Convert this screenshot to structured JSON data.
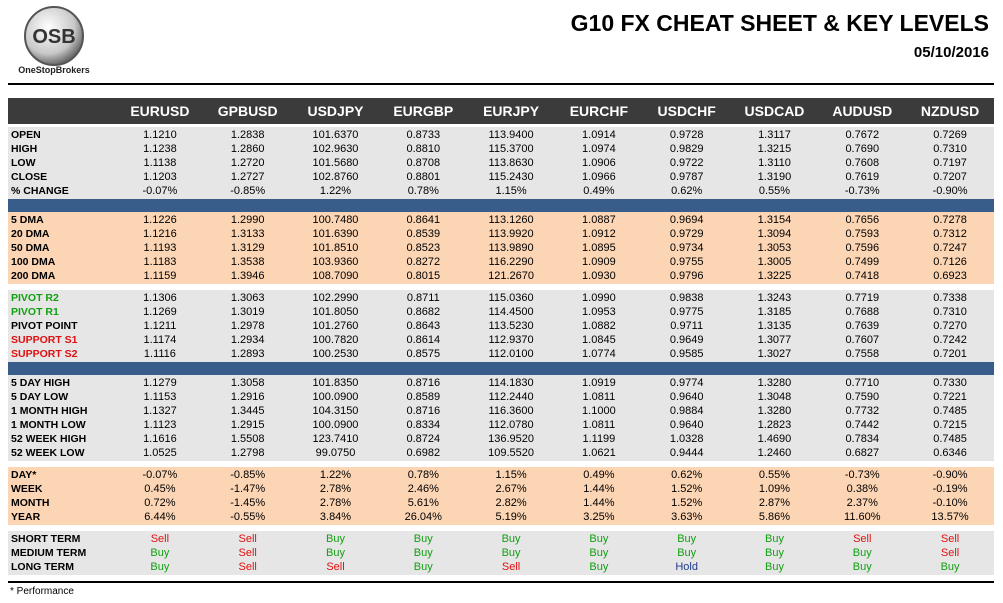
{
  "header": {
    "logo_text": "OSB",
    "brand": "OneStopBrokers",
    "title": "G10 FX CHEAT SHEET & KEY LEVELS",
    "date": "05/10/2016"
  },
  "table": {
    "columns": [
      "EURUSD",
      "GPBUSD",
      "USDJPY",
      "EURGBP",
      "EURJPY",
      "EURCHF",
      "USDCHF",
      "USDCAD",
      "AUDUSD",
      "NZDUSD"
    ],
    "cell_colors": {
      "Buy": "#12a012",
      "Sell": "#e01010",
      "Hold": "#1f3b8c"
    },
    "sections": [
      {
        "fill": "#e6e6e6",
        "rows": [
          {
            "label": "OPEN",
            "cells": [
              "1.1210",
              "1.2838",
              "101.6370",
              "0.8733",
              "113.9400",
              "1.0914",
              "0.9728",
              "1.3117",
              "0.7672",
              "0.7269"
            ]
          },
          {
            "label": "HIGH",
            "cells": [
              "1.1238",
              "1.2860",
              "102.9630",
              "0.8810",
              "115.3700",
              "1.0974",
              "0.9829",
              "1.3215",
              "0.7690",
              "0.7310"
            ]
          },
          {
            "label": "LOW",
            "cells": [
              "1.1138",
              "1.2720",
              "101.5680",
              "0.8708",
              "113.8630",
              "1.0906",
              "0.9722",
              "1.3110",
              "0.7608",
              "0.7197"
            ]
          },
          {
            "label": "CLOSE",
            "cells": [
              "1.1203",
              "1.2727",
              "102.8760",
              "0.8801",
              "115.2430",
              "1.0966",
              "0.9787",
              "1.3190",
              "0.7619",
              "0.7207"
            ]
          },
          {
            "label": "% CHANGE",
            "cells": [
              "-0.07%",
              "-0.85%",
              "1.22%",
              "0.78%",
              "1.15%",
              "0.49%",
              "0.62%",
              "0.55%",
              "-0.73%",
              "-0.90%"
            ]
          }
        ]
      },
      {
        "fill": "#fcd5b4",
        "divider": "#385d8a",
        "rows": [
          {
            "label": "5 DMA",
            "cells": [
              "1.1226",
              "1.2990",
              "100.7480",
              "0.8641",
              "113.1260",
              "1.0887",
              "0.9694",
              "1.3154",
              "0.7656",
              "0.7278"
            ]
          },
          {
            "label": "20 DMA",
            "cells": [
              "1.1216",
              "1.3133",
              "101.6390",
              "0.8539",
              "113.9920",
              "1.0912",
              "0.9729",
              "1.3094",
              "0.7593",
              "0.7312"
            ]
          },
          {
            "label": "50 DMA",
            "cells": [
              "1.1193",
              "1.3129",
              "101.8510",
              "0.8523",
              "113.9890",
              "1.0895",
              "0.9734",
              "1.3053",
              "0.7596",
              "0.7247"
            ]
          },
          {
            "label": "100 DMA",
            "cells": [
              "1.1183",
              "1.3538",
              "103.9360",
              "0.8272",
              "116.2290",
              "1.0909",
              "0.9755",
              "1.3005",
              "0.7499",
              "0.7126"
            ]
          },
          {
            "label": "200 DMA",
            "cells": [
              "1.1159",
              "1.3946",
              "108.7090",
              "0.8015",
              "121.2670",
              "1.0930",
              "0.9796",
              "1.3225",
              "0.7418",
              "0.6923"
            ]
          }
        ]
      },
      {
        "fill": "#e6e6e6",
        "rows": [
          {
            "label": "PIVOT R2",
            "label_color": "#12a012",
            "cells": [
              "1.1306",
              "1.3063",
              "102.2990",
              "0.8711",
              "115.0360",
              "1.0990",
              "0.9838",
              "1.3243",
              "0.7719",
              "0.7338"
            ]
          },
          {
            "label": "PIVOT R1",
            "label_color": "#12a012",
            "cells": [
              "1.1269",
              "1.3019",
              "101.8050",
              "0.8682",
              "114.4500",
              "1.0953",
              "0.9775",
              "1.3185",
              "0.7688",
              "0.7310"
            ]
          },
          {
            "label": "PIVOT POINT",
            "cells": [
              "1.1211",
              "1.2978",
              "101.2760",
              "0.8643",
              "113.5230",
              "1.0882",
              "0.9711",
              "1.3135",
              "0.7639",
              "0.7270"
            ]
          },
          {
            "label": "SUPPORT S1",
            "label_color": "#e01010",
            "cells": [
              "1.1174",
              "1.2934",
              "100.7820",
              "0.8614",
              "112.9370",
              "1.0845",
              "0.9649",
              "1.3077",
              "0.7607",
              "0.7242"
            ]
          },
          {
            "label": "SUPPORT S2",
            "label_color": "#e01010",
            "cells": [
              "1.1116",
              "1.2893",
              "100.2530",
              "0.8575",
              "112.0100",
              "1.0774",
              "0.9585",
              "1.3027",
              "0.7558",
              "0.7201"
            ]
          }
        ]
      },
      {
        "fill": "#e6e6e6",
        "divider": "#385d8a",
        "rows": [
          {
            "label": "5 DAY HIGH",
            "cells": [
              "1.1279",
              "1.3058",
              "101.8350",
              "0.8716",
              "114.1830",
              "1.0919",
              "0.9774",
              "1.3280",
              "0.7710",
              "0.7330"
            ]
          },
          {
            "label": "5 DAY LOW",
            "cells": [
              "1.1153",
              "1.2916",
              "100.0900",
              "0.8589",
              "112.2440",
              "1.0811",
              "0.9640",
              "1.3048",
              "0.7590",
              "0.7221"
            ]
          },
          {
            "label": "1 MONTH HIGH",
            "cells": [
              "1.1327",
              "1.3445",
              "104.3150",
              "0.8716",
              "116.3600",
              "1.1000",
              "0.9884",
              "1.3280",
              "0.7732",
              "0.7485"
            ]
          },
          {
            "label": "1 MONTH LOW",
            "cells": [
              "1.1123",
              "1.2915",
              "100.0900",
              "0.8334",
              "112.0780",
              "1.0811",
              "0.9640",
              "1.2823",
              "0.7442",
              "0.7215"
            ]
          },
          {
            "label": "52 WEEK HIGH",
            "cells": [
              "1.1616",
              "1.5508",
              "123.7410",
              "0.8724",
              "136.9520",
              "1.1199",
              "1.0328",
              "1.4690",
              "0.7834",
              "0.7485"
            ]
          },
          {
            "label": "52 WEEK LOW",
            "cells": [
              "1.0525",
              "1.2798",
              "99.0750",
              "0.6982",
              "109.5520",
              "1.0621",
              "0.9444",
              "1.2460",
              "0.6827",
              "0.6346"
            ]
          }
        ]
      },
      {
        "fill": "#fcd5b4",
        "rows": [
          {
            "label": "DAY*",
            "cells": [
              "-0.07%",
              "-0.85%",
              "1.22%",
              "0.78%",
              "1.15%",
              "0.49%",
              "0.62%",
              "0.55%",
              "-0.73%",
              "-0.90%"
            ]
          },
          {
            "label": "WEEK",
            "cells": [
              "0.45%",
              "-1.47%",
              "2.78%",
              "2.46%",
              "2.67%",
              "1.44%",
              "1.52%",
              "1.09%",
              "0.38%",
              "-0.19%"
            ]
          },
          {
            "label": "MONTH",
            "cells": [
              "0.72%",
              "-1.45%",
              "2.78%",
              "5.61%",
              "2.82%",
              "1.44%",
              "1.52%",
              "2.87%",
              "2.37%",
              "-0.10%"
            ]
          },
          {
            "label": "YEAR",
            "cells": [
              "6.44%",
              "-0.55%",
              "3.84%",
              "26.04%",
              "5.19%",
              "3.25%",
              "3.63%",
              "5.86%",
              "11.60%",
              "13.57%"
            ]
          }
        ]
      },
      {
        "fill": "#e6e6e6",
        "rows": [
          {
            "label": "SHORT TERM",
            "cells": [
              "Sell",
              "Sell",
              "Buy",
              "Buy",
              "Buy",
              "Buy",
              "Buy",
              "Buy",
              "Sell",
              "Sell"
            ]
          },
          {
            "label": "MEDIUM TERM",
            "cells": [
              "Buy",
              "Sell",
              "Buy",
              "Buy",
              "Buy",
              "Buy",
              "Buy",
              "Buy",
              "Buy",
              "Sell"
            ]
          },
          {
            "label": "LONG TERM",
            "cells": [
              "Buy",
              "Sell",
              "Sell",
              "Buy",
              "Sell",
              "Buy",
              "Hold",
              "Buy",
              "Buy",
              "Buy"
            ]
          }
        ]
      }
    ]
  },
  "footnote": "* Performance"
}
